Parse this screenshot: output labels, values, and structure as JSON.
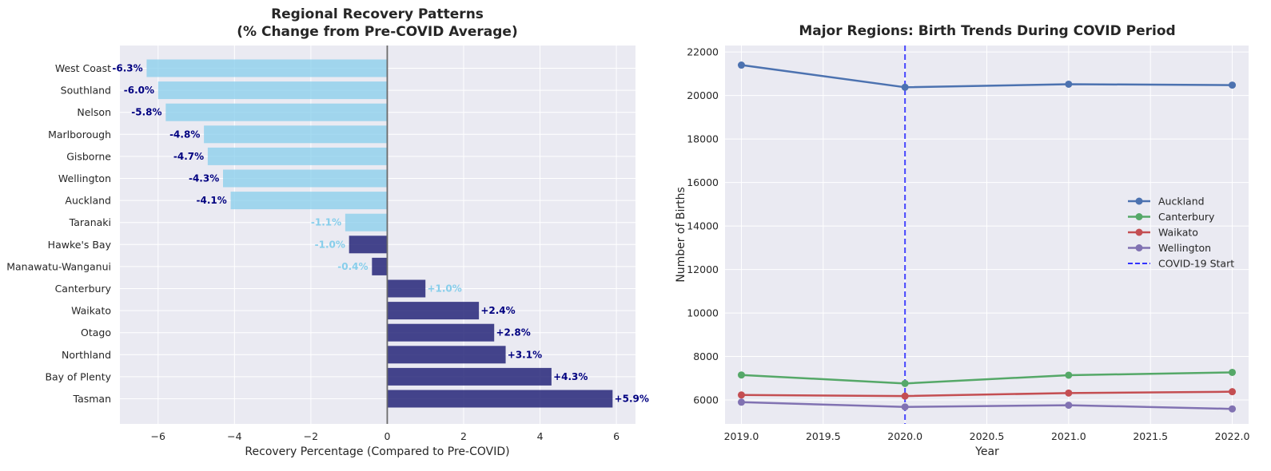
{
  "colors": {
    "panel_bg": "#EAEAF2",
    "grid": "#FFFFFF",
    "bar_light": "#87CEEB",
    "bar_dark": "#191970",
    "label_navy": "#000080",
    "label_light": "#87CEEB",
    "zero_line": "#6b6b6b",
    "covid_line": "#3333ff"
  },
  "chart_data": [
    {
      "type": "bar",
      "orientation": "horizontal",
      "title": "Regional Recovery Patterns\n(% Change from Pre-COVID Average)",
      "title_lines": [
        "Regional Recovery Patterns",
        "(% Change from Pre-COVID Average)"
      ],
      "xlabel": "Recovery Percentage (Compared to Pre-COVID)",
      "ylabel": "",
      "xlim": [
        -7,
        6.5
      ],
      "xticks": [
        -6,
        -4,
        -2,
        0,
        2,
        4,
        6
      ],
      "xtick_labels": [
        "−6",
        "−4",
        "−2",
        "0",
        "2",
        "4",
        "6"
      ],
      "grid": true,
      "categories": [
        "West Coast",
        "Southland",
        "Nelson",
        "Marlborough",
        "Gisborne",
        "Wellington",
        "Auckland",
        "Taranaki",
        "Hawke's Bay",
        "Manawatu-Wanganui",
        "Canterbury",
        "Waikato",
        "Otago",
        "Northland",
        "Bay of Plenty",
        "Tasman"
      ],
      "values": [
        -6.3,
        -6.0,
        -5.8,
        -4.8,
        -4.7,
        -4.3,
        -4.1,
        -1.1,
        -1.0,
        -0.4,
        1.0,
        2.4,
        2.8,
        3.1,
        4.3,
        5.9
      ],
      "data_labels": [
        "-6.3%",
        "-6.0%",
        "-5.8%",
        "-4.8%",
        "-4.7%",
        "-4.3%",
        "-4.1%",
        "-1.1%",
        "-1.0%",
        "-0.4%",
        "+1.0%",
        "+2.4%",
        "+2.8%",
        "+3.1%",
        "+4.3%",
        "+5.9%"
      ],
      "bar_color_keys": [
        "bar_light",
        "bar_light",
        "bar_light",
        "bar_light",
        "bar_light",
        "bar_light",
        "bar_light",
        "bar_light",
        "bar_dark",
        "bar_dark",
        "bar_dark",
        "bar_dark",
        "bar_dark",
        "bar_dark",
        "bar_dark",
        "bar_dark"
      ],
      "label_color_keys": [
        "label_navy",
        "label_navy",
        "label_navy",
        "label_navy",
        "label_navy",
        "label_navy",
        "label_navy",
        "label_light",
        "label_light",
        "label_light",
        "label_light",
        "label_navy",
        "label_navy",
        "label_navy",
        "label_navy",
        "label_navy"
      ]
    },
    {
      "type": "line",
      "title": "Major Regions: Birth Trends During COVID Period",
      "xlabel": "Year",
      "ylabel": "Number of Births",
      "xlim": [
        2018.9,
        2022.1
      ],
      "ylim": [
        4900,
        22300
      ],
      "xticks": [
        2019.0,
        2019.5,
        2020.0,
        2020.5,
        2021.0,
        2021.5,
        2022.0
      ],
      "xtick_labels": [
        "2019.0",
        "2019.5",
        "2020.0",
        "2020.5",
        "2021.0",
        "2021.5",
        "2022.0"
      ],
      "yticks": [
        6000,
        8000,
        10000,
        12000,
        14000,
        16000,
        18000,
        20000,
        22000
      ],
      "ytick_labels": [
        "6000",
        "8000",
        "10000",
        "12000",
        "14000",
        "16000",
        "18000",
        "20000",
        "22000"
      ],
      "grid": true,
      "legend_placement": "center-right",
      "x": [
        2019,
        2020,
        2021,
        2022
      ],
      "series": [
        {
          "name": "Auckland",
          "color": "#4C72B0",
          "values": [
            21400,
            20380,
            20520,
            20480
          ]
        },
        {
          "name": "Canterbury",
          "color": "#55A868",
          "values": [
            7150,
            6760,
            7140,
            7270
          ]
        },
        {
          "name": "Waikato",
          "color": "#C44E52",
          "values": [
            6230,
            6180,
            6320,
            6380
          ]
        },
        {
          "name": "Wellington",
          "color": "#8172B2",
          "values": [
            5900,
            5680,
            5760,
            5590
          ]
        }
      ],
      "vline": {
        "name": "COVID-19 Start",
        "x": 2020,
        "color": "#3333ff",
        "style": "dashed"
      }
    }
  ]
}
